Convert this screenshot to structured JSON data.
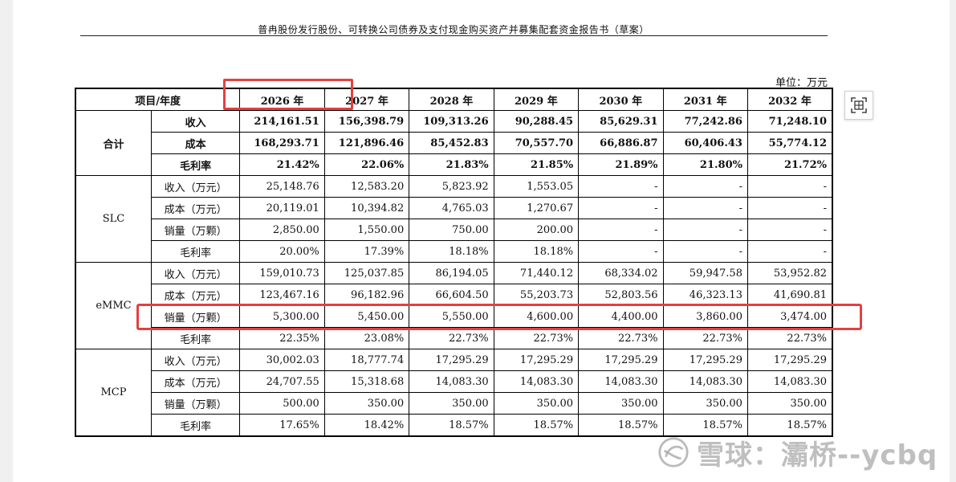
{
  "document": {
    "header": "普冉股份发行股份、可转换公司债券及支付现金购买资产并募集配套资金报告书（草案）",
    "unit": "单位：万元"
  },
  "table": {
    "corner": "项目/年度",
    "years": [
      "2026 年",
      "2027 年",
      "2028 年",
      "2029 年",
      "2030 年",
      "2031 年",
      "2032 年"
    ],
    "groups": [
      {
        "label": "合计",
        "rows": [
          {
            "metric": "收入",
            "values": [
              "214,161.51",
              "156,398.79",
              "109,313.26",
              "90,288.45",
              "85,629.31",
              "77,242.86",
              "71,248.10"
            ]
          },
          {
            "metric": "成本",
            "values": [
              "168,293.71",
              "121,896.46",
              "85,452.83",
              "70,557.70",
              "66,886.87",
              "60,406.43",
              "55,774.12"
            ]
          },
          {
            "metric": "毛利率",
            "values": [
              "21.42%",
              "22.06%",
              "21.83%",
              "21.85%",
              "21.89%",
              "21.80%",
              "21.72%"
            ]
          }
        ]
      },
      {
        "label": "SLC",
        "rows": [
          {
            "metric": "收入（万元）",
            "values": [
              "25,148.76",
              "12,583.20",
              "5,823.92",
              "1,553.05",
              "-",
              "-",
              "-"
            ]
          },
          {
            "metric": "成本（万元）",
            "values": [
              "20,119.01",
              "10,394.82",
              "4,765.03",
              "1,270.67",
              "-",
              "-",
              "-"
            ]
          },
          {
            "metric": "销量（万颗）",
            "values": [
              "2,850.00",
              "1,550.00",
              "750.00",
              "200.00",
              "-",
              "-",
              "-"
            ]
          },
          {
            "metric": "毛利率",
            "values": [
              "20.00%",
              "17.39%",
              "18.18%",
              "18.18%",
              "-",
              "-",
              "-"
            ]
          }
        ]
      },
      {
        "label": "eMMC",
        "rows": [
          {
            "metric": "收入（万元）",
            "values": [
              "159,010.73",
              "125,037.85",
              "86,194.05",
              "71,440.12",
              "68,334.02",
              "59,947.58",
              "53,952.82"
            ]
          },
          {
            "metric": "成本（万元）",
            "values": [
              "123,467.16",
              "96,182.96",
              "66,604.50",
              "55,203.73",
              "52,803.56",
              "46,323.13",
              "41,690.81"
            ]
          },
          {
            "metric": "销量（万颗）",
            "values": [
              "5,300.00",
              "5,450.00",
              "5,550.00",
              "4,600.00",
              "4,400.00",
              "3,860.00",
              "3,474.00"
            ]
          },
          {
            "metric": "毛利率",
            "values": [
              "22.35%",
              "23.08%",
              "22.73%",
              "22.73%",
              "22.73%",
              "22.73%",
              "22.73%"
            ]
          }
        ]
      },
      {
        "label": "MCP",
        "rows": [
          {
            "metric": "收入（万元）",
            "values": [
              "30,002.03",
              "18,777.74",
              "17,295.29",
              "17,295.29",
              "17,295.29",
              "17,295.29",
              "17,295.29"
            ]
          },
          {
            "metric": "成本（万元）",
            "values": [
              "24,707.55",
              "15,318.68",
              "14,083.30",
              "14,083.30",
              "14,083.30",
              "14,083.30",
              "14,083.30"
            ]
          },
          {
            "metric": "销量（万颗）",
            "values": [
              "500.00",
              "350.00",
              "350.00",
              "350.00",
              "350.00",
              "350.00",
              "350.00"
            ]
          },
          {
            "metric": "毛利率",
            "values": [
              "17.65%",
              "18.42%",
              "18.57%",
              "18.57%",
              "18.57%",
              "18.57%",
              "18.57%"
            ]
          }
        ]
      }
    ]
  },
  "watermark": {
    "text": "雪球：灞桥--ycbq",
    "icon": "snowball-logo-icon"
  },
  "toolbar": {
    "scan_icon": "scan-icon"
  },
  "colors": {
    "highlight": "#e44040",
    "watermark": "#aaaaaa"
  }
}
